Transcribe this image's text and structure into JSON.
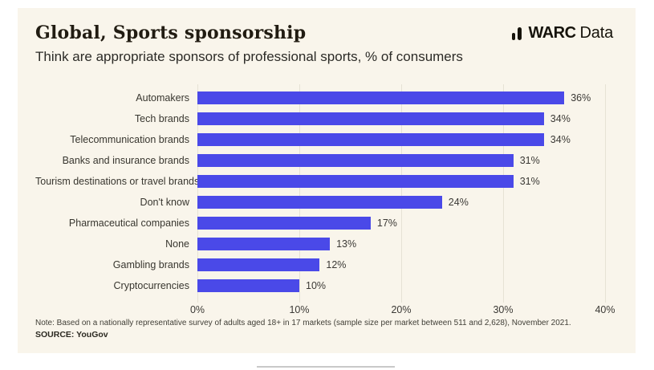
{
  "header": {
    "title": "Global, Sports sponsorship",
    "subtitle": "Think are appropriate sponsors of professional sports, % of consumers",
    "logo_warc": "WARC",
    "logo_data": "Data"
  },
  "chart_data": {
    "type": "bar",
    "orientation": "horizontal",
    "title": "Global, Sports sponsorship",
    "subtitle": "Think are appropriate sponsors of professional sports, % of consumers",
    "categories": [
      "Automakers",
      "Tech brands",
      "Telecommunication brands",
      "Banks and insurance brands",
      "Tourism destinations or travel brands",
      "Don't know",
      "Pharmaceutical companies",
      "None",
      "Gambling brands",
      "Cryptocurrencies"
    ],
    "values": [
      36,
      34,
      34,
      31,
      31,
      24,
      17,
      13,
      12,
      10
    ],
    "value_labels": [
      "36%",
      "34%",
      "34%",
      "31%",
      "31%",
      "24%",
      "17%",
      "13%",
      "12%",
      "10%"
    ],
    "xlabel": "",
    "ylabel": "",
    "xlim": [
      0,
      40
    ],
    "x_ticks": [
      "0%",
      "10%",
      "20%",
      "30%",
      "40%"
    ],
    "x_tick_values": [
      0,
      10,
      20,
      30,
      40
    ],
    "grid": true,
    "legend": false,
    "bar_color": "#4a49e8"
  },
  "footer": {
    "note": "Note: Based on a nationally representative survey of adults aged 18+ in 17 markets (sample size per market between 511 and 2,628), November 2021.",
    "source": "SOURCE: YouGov"
  },
  "colors": {
    "card_background": "#f9f5eb",
    "page_background": "#ffffff",
    "bar": "#4a49e8",
    "gridline": "#e6e2d5",
    "title_text": "#211c12",
    "body_text": "#38362f"
  }
}
